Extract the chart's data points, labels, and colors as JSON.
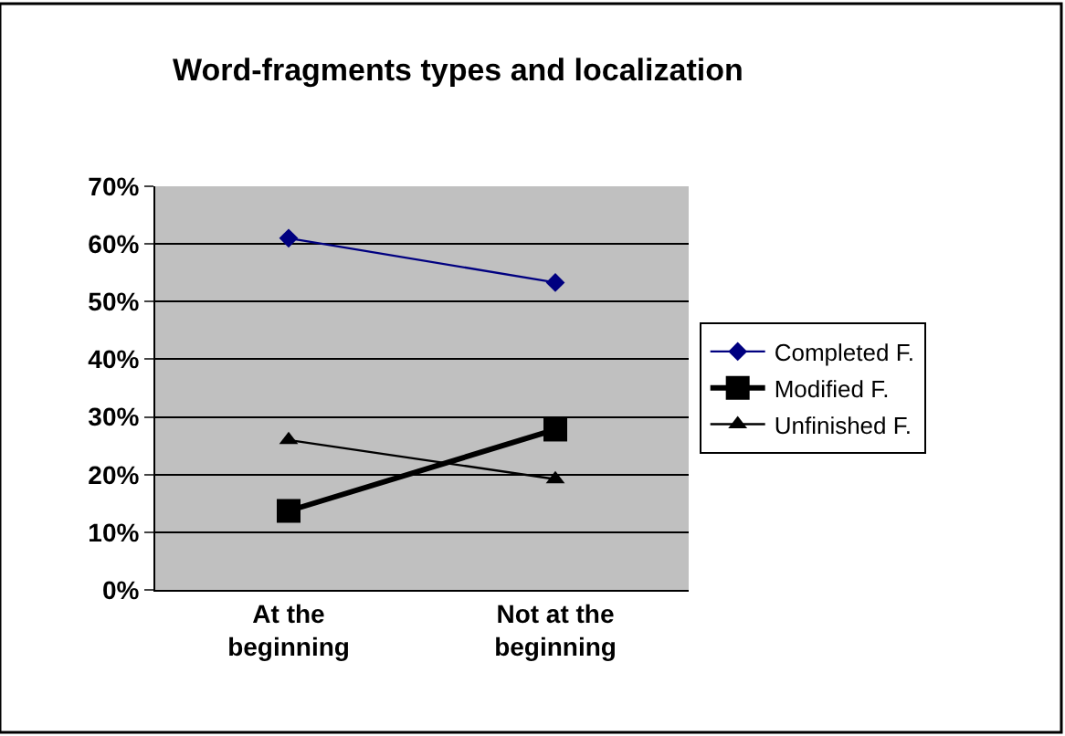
{
  "chart_data": {
    "type": "line",
    "title": "Word-fragments types and localization",
    "categories": [
      "At the beginning",
      "Not at the beginning"
    ],
    "series": [
      {
        "name": "Completed F.",
        "color": "#000080",
        "values": [
          61,
          53.3
        ],
        "marker": "diamond"
      },
      {
        "name": "Modified F.",
        "color": "#000000",
        "values": [
          13.7,
          27.8
        ],
        "marker": "square"
      },
      {
        "name": "Unfinished F.",
        "color": "#000000",
        "values": [
          26,
          19.2
        ],
        "marker": "triangle"
      }
    ],
    "ylim": [
      0,
      70
    ],
    "yticks": [
      {
        "value": 0,
        "label": "0%"
      },
      {
        "value": 10,
        "label": "10%"
      },
      {
        "value": 20,
        "label": "20%"
      },
      {
        "value": 30,
        "label": "30%"
      },
      {
        "value": 40,
        "label": "40%"
      },
      {
        "value": 50,
        "label": "50%"
      },
      {
        "value": 60,
        "label": "60%"
      },
      {
        "value": 70,
        "label": "70%"
      }
    ],
    "grid": "y",
    "legend": "right",
    "line_style": "solid"
  }
}
